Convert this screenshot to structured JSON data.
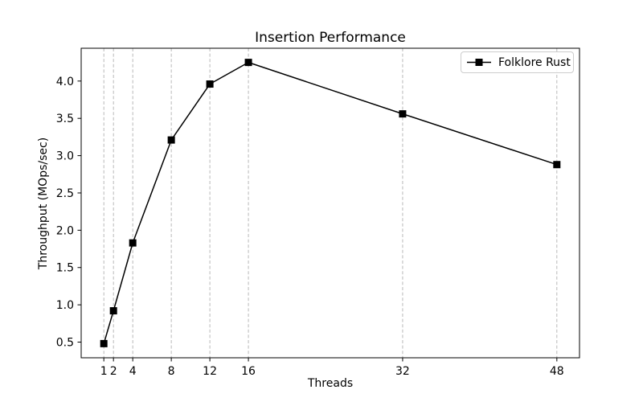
{
  "chart_data": {
    "type": "line",
    "title": "Insertion Performance",
    "xlabel": "Threads",
    "ylabel": "Throughput (MOps/sec)",
    "x": [
      1,
      2,
      4,
      8,
      12,
      16,
      32,
      48
    ],
    "series": [
      {
        "name": "Folklore Rust",
        "color": "#000000",
        "marker": "square",
        "values": [
          0.48,
          0.92,
          1.83,
          3.21,
          3.96,
          4.25,
          3.56,
          2.88
        ]
      }
    ],
    "xticks": {
      "values": [
        1,
        2,
        4,
        8,
        12,
        16,
        32,
        48
      ],
      "labels": [
        "1",
        "2",
        "4",
        "8",
        "12",
        "16",
        "32",
        "48"
      ]
    },
    "yticks": {
      "values": [
        0.5,
        1.0,
        1.5,
        2.0,
        2.5,
        3.0,
        3.5,
        4.0
      ],
      "labels": [
        "0.5",
        "1.0",
        "1.5",
        "2.0",
        "2.5",
        "3.0",
        "3.5",
        "4.0"
      ]
    },
    "xlim": [
      -1.35,
      50.35
    ],
    "ylim": [
      0.29,
      4.44
    ],
    "grid": {
      "vertical": true,
      "horizontal": false,
      "line_style": "dashed",
      "color": "#b0b0b0"
    },
    "legend": {
      "location": "upper right",
      "entries": [
        {
          "label": "Folklore Rust",
          "marker": "square",
          "color": "#000000"
        }
      ]
    }
  },
  "colors": {
    "background": "#ffffff",
    "axes": "#000000",
    "text": "#000000",
    "grid": "#b0b0b0",
    "legend_border": "#cccccc"
  }
}
